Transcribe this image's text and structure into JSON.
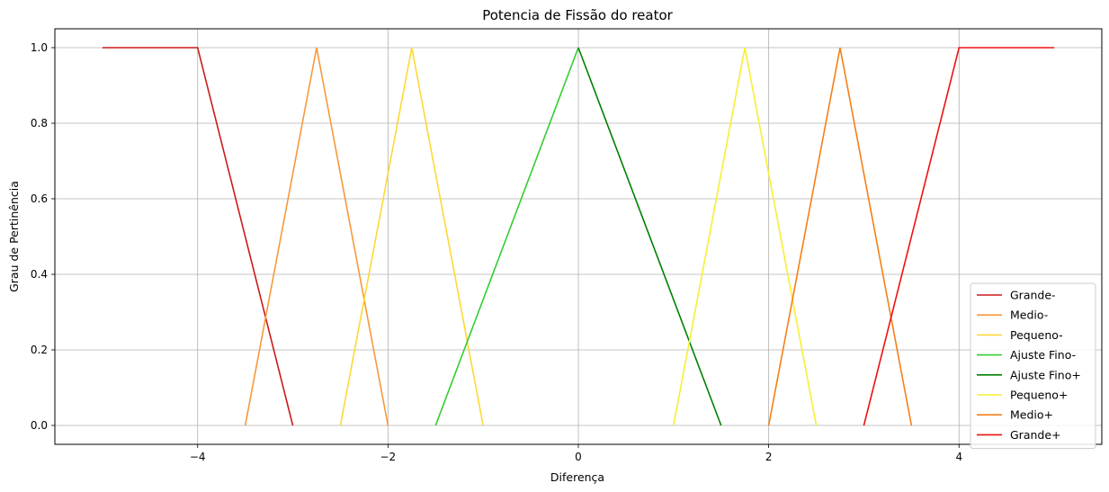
{
  "chart_data": {
    "type": "line",
    "title": "Potencia de Fissão do reator",
    "xlabel": "Diferença",
    "ylabel": "Grau de Pertinência",
    "xlim": [
      -5.5,
      5.5
    ],
    "ylim": [
      -0.05,
      1.05
    ],
    "xticks": [
      -4,
      -2,
      0,
      2,
      4
    ],
    "xtick_labels": [
      "−4",
      "−2",
      "0",
      "2",
      "4"
    ],
    "yticks": [
      0.0,
      0.2,
      0.4,
      0.6,
      0.8,
      1.0
    ],
    "ytick_labels": [
      "0.0",
      "0.2",
      "0.4",
      "0.6",
      "0.8",
      "1.0"
    ],
    "grid": true,
    "legend_position": "lower-right",
    "series": [
      {
        "name": "Grande-",
        "color": "#cc1a1a",
        "x": [
          -5,
          -4,
          -3
        ],
        "y": [
          1,
          1,
          0
        ]
      },
      {
        "name": "Medio-",
        "color": "#f5993a",
        "x": [
          -3.5,
          -2.75,
          -2
        ],
        "y": [
          0,
          1,
          0
        ]
      },
      {
        "name": "Pequeno-",
        "color": "#fdd835",
        "x": [
          -2.5,
          -1.75,
          -1
        ],
        "y": [
          0,
          1,
          0
        ]
      },
      {
        "name": "Ajuste Fino-",
        "color": "#33cc33",
        "x": [
          -1.5,
          0
        ],
        "y": [
          0,
          1
        ]
      },
      {
        "name": "Ajuste Fino+",
        "color": "#008000",
        "x": [
          0,
          1.5
        ],
        "y": [
          1,
          0
        ]
      },
      {
        "name": "Pequeno+",
        "color": "#f7ef34",
        "x": [
          1,
          1.75,
          2.5
        ],
        "y": [
          0,
          1,
          0
        ]
      },
      {
        "name": "Medio+",
        "color": "#f57f17",
        "x": [
          2,
          2.75,
          3.5
        ],
        "y": [
          0,
          1,
          0
        ]
      },
      {
        "name": "Grande+",
        "color": "#ee1111",
        "x": [
          3,
          4,
          5
        ],
        "y": [
          0,
          1,
          1
        ]
      }
    ]
  }
}
